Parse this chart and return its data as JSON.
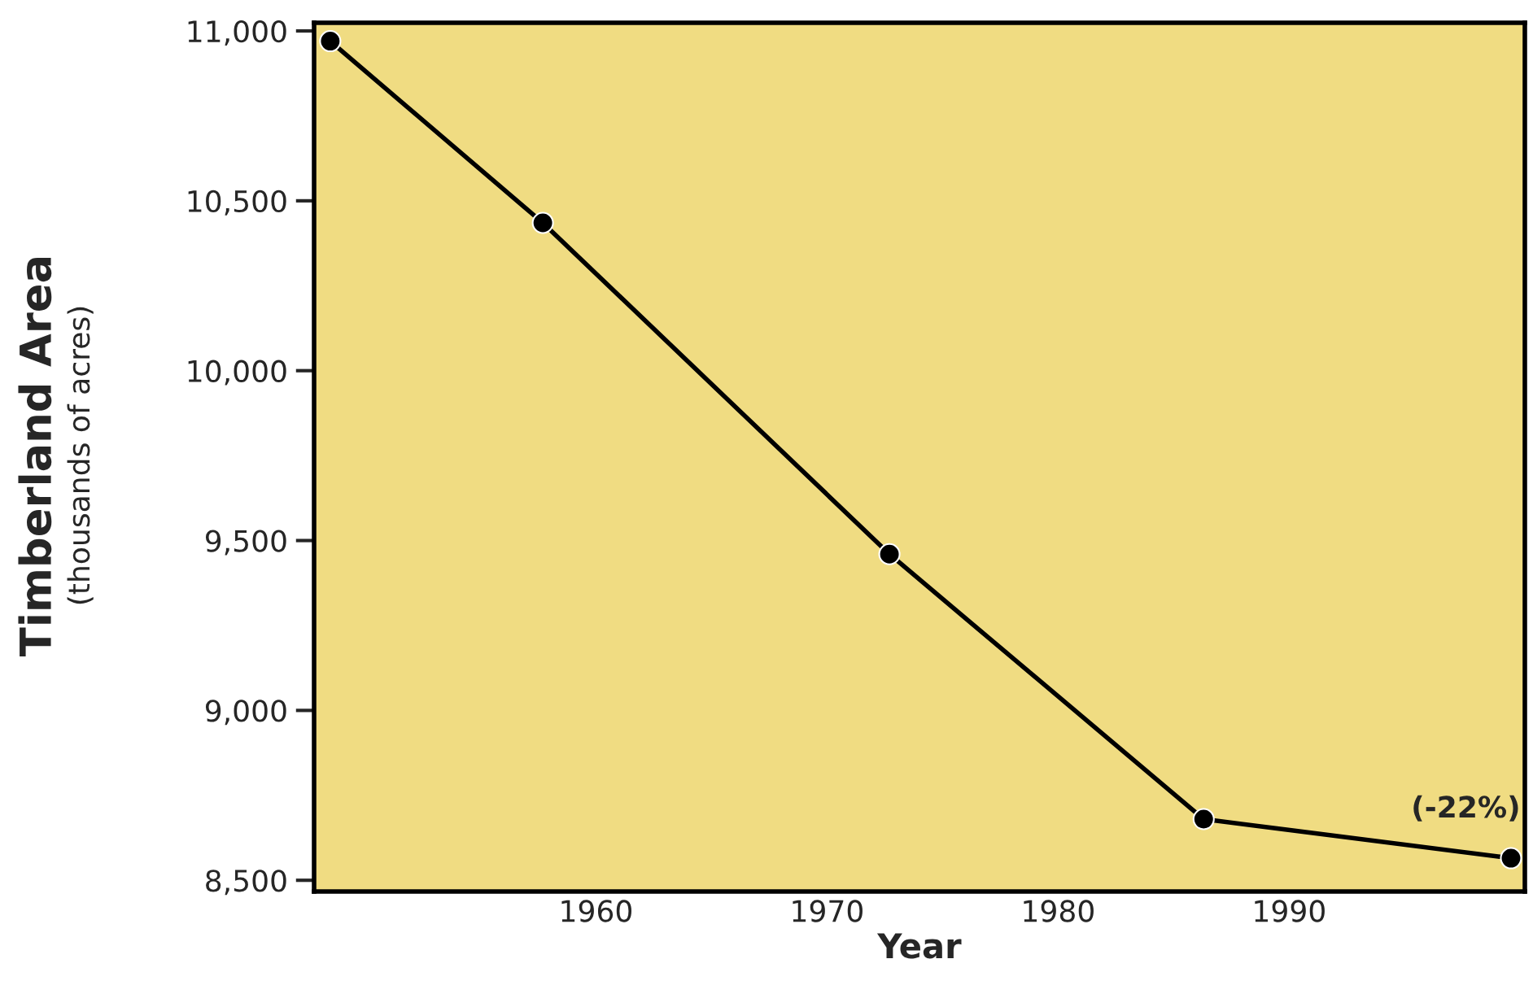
{
  "chart_data": {
    "type": "line",
    "xlabel": "Year",
    "ylabel": "Timberland Area",
    "subtitle": "(thousands of acres)",
    "x": [
      1948.5,
      1957.7,
      1972.7,
      1986.3,
      1999.6
    ],
    "series": [
      {
        "color": "#000000",
        "values": [
          10970,
          10435,
          9460,
          8680,
          8565
        ]
      }
    ],
    "xlim": [
      1947.8,
      2000.2
    ],
    "xticks": [
      1960,
      1970,
      1980,
      1990
    ],
    "ylim": [
      8467,
      11024
    ],
    "yticks": [
      {
        "value": 8500,
        "label": "8,500"
      },
      {
        "value": 9000,
        "label": "9,000"
      },
      {
        "value": 9500,
        "label": "9,500"
      },
      {
        "value": 10000,
        "label": "10,000"
      },
      {
        "value": 10500,
        "label": "10,500"
      },
      {
        "value": 11000,
        "label": "11,000"
      }
    ],
    "annotations": [
      {
        "text": "(-22%)",
        "x": 1999.6,
        "y": 8565
      }
    ],
    "marker": "circle",
    "line_style": "solid",
    "grid": false,
    "legend": false
  }
}
